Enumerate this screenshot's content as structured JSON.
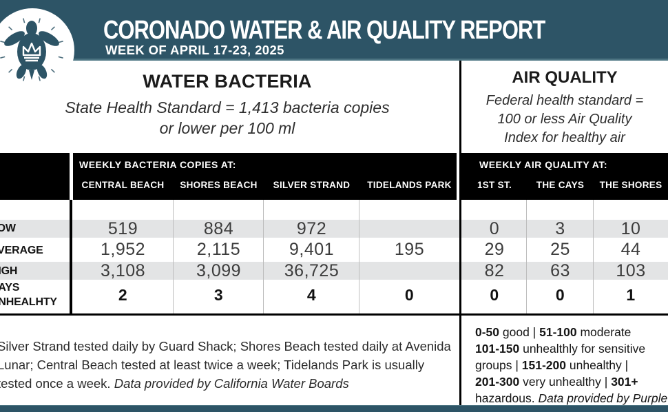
{
  "header": {
    "title": "CORONADO WATER & AIR QUALITY REPORT",
    "week": "WEEK OF APRIL 17-23, 2025"
  },
  "colors": {
    "teal": "#2d5466",
    "black": "#000000",
    "stripe_gray": "#e3e4e5",
    "white": "#ffffff"
  },
  "logo": {
    "name": "coronado-turtle-crown-logo"
  },
  "water": {
    "heading": "WATER BACTERIA",
    "standard_line1": "State Health Standard  = 1,413 bacteria copies",
    "standard_line2": "or lower per 100 ml"
  },
  "air": {
    "heading": "AIR QUALITY",
    "standard_line1": "Federal health standard =",
    "standard_line2": "100 or less Air Quality",
    "standard_line3": "Index for healthy air"
  },
  "table": {
    "water_header": "WEEKLY BACTERIA COPIES AT:",
    "air_header": "WEEKLY AIR QUALITY AT:",
    "water_columns": [
      "CENTRAL BEACH",
      "SHORES BEACH",
      "SILVER STRAND",
      "TIDELANDS PARK"
    ],
    "air_columns": [
      "1ST ST.",
      "THE CAYS",
      "THE SHORES"
    ],
    "rows": [
      {
        "label": "LOW",
        "water": [
          "519",
          "884",
          "972",
          ""
        ],
        "air": [
          "0",
          "3",
          "10"
        ]
      },
      {
        "label": "AVERAGE",
        "water": [
          "1,952",
          "2,115",
          "9,401",
          "195"
        ],
        "air": [
          "29",
          "25",
          "44"
        ]
      },
      {
        "label": "HIGH",
        "water": [
          "3,108",
          "3,099",
          "36,725",
          ""
        ],
        "air": [
          "82",
          "63",
          "103"
        ]
      },
      {
        "label": "DAYS UNHEALHTY",
        "water": [
          "2",
          "3",
          "4",
          "0"
        ],
        "air": [
          "0",
          "0",
          "1"
        ]
      }
    ]
  },
  "footnotes": {
    "water_lines": [
      [
        {
          "t": "Silver Strand tested daily by Guard Shack; Shores Beach tested daily at Avenida"
        }
      ],
      [
        {
          "t": "Lunar; Central Beach tested at least twice a week; Tidelands Park is usually"
        }
      ],
      [
        {
          "t": "tested once a week. "
        },
        {
          "t": "Data provided by California Water Boards",
          "i": true
        }
      ]
    ],
    "air_lines": [
      [
        {
          "t": "0-50",
          "b": true
        },
        {
          "t": " good | "
        },
        {
          "t": "51-100",
          "b": true
        },
        {
          "t": " moderate"
        }
      ],
      [
        {
          "t": "101-150",
          "b": true
        },
        {
          "t": " unhealthly for sensitive"
        }
      ],
      [
        {
          "t": "groups | "
        },
        {
          "t": "151-200",
          "b": true
        },
        {
          "t": " unhealthy |"
        }
      ],
      [
        {
          "t": "201-300",
          "b": true
        },
        {
          "t": " very unhealthy | "
        },
        {
          "t": "301+",
          "b": true
        }
      ],
      [
        {
          "t": "hazardous. "
        },
        {
          "t": "Data provided by Purple Air",
          "i": true
        }
      ]
    ]
  }
}
